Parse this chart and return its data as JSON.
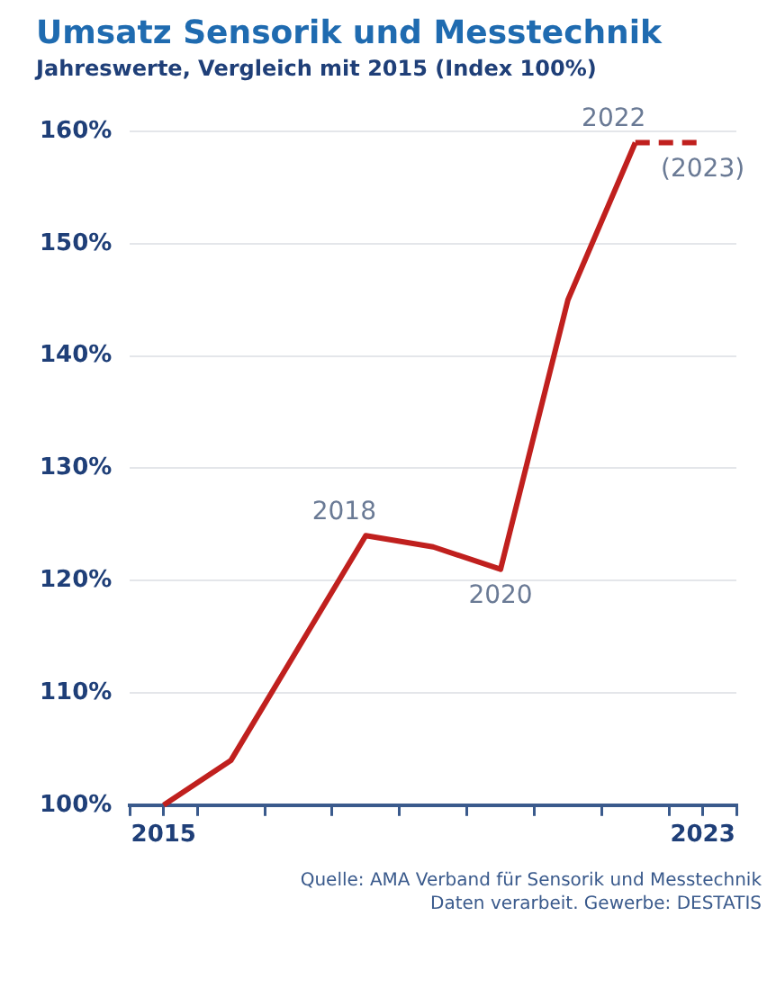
{
  "chart_data": {
    "type": "line",
    "title": "Umsatz Sensorik und Messtechnik",
    "subtitle": "Jahreswerte, Vergleich mit 2015 (Index 100%)",
    "series": [
      {
        "color": "#c0201e",
        "x": [
          2015,
          2016,
          2017,
          2018,
          2019,
          2020,
          2021,
          2022
        ],
        "values": [
          100,
          104,
          114,
          124,
          123,
          121,
          145,
          159
        ],
        "line_style": "solid"
      },
      {
        "color": "#c0201e",
        "x": [
          2022,
          2023
        ],
        "values": [
          159,
          159
        ],
        "line_style": "dashed"
      }
    ],
    "xlim": [
      2014.5,
      2023.5
    ],
    "xticks": [
      {
        "value": 2014.5,
        "label": null
      },
      {
        "value": 2015,
        "label": "2015"
      },
      {
        "value": 2015.5,
        "label": null
      },
      {
        "value": 2016.5,
        "label": null
      },
      {
        "value": 2017.5,
        "label": null
      },
      {
        "value": 2018.5,
        "label": null
      },
      {
        "value": 2019.5,
        "label": null
      },
      {
        "value": 2020.5,
        "label": null
      },
      {
        "value": 2021.5,
        "label": null
      },
      {
        "value": 2022.5,
        "label": null
      },
      {
        "value": 2023,
        "label": "2023"
      },
      {
        "value": 2023.5,
        "label": null
      }
    ],
    "ylim": [
      100,
      160
    ],
    "yticks": [
      {
        "value": 100,
        "label": "100%"
      },
      {
        "value": 110,
        "label": "110%"
      },
      {
        "value": 120,
        "label": "120%"
      },
      {
        "value": 130,
        "label": "130%"
      },
      {
        "value": 140,
        "label": "140%"
      },
      {
        "value": 150,
        "label": "150%"
      },
      {
        "value": 160,
        "label": "160%"
      }
    ],
    "grid": "y",
    "marker": "none",
    "legend": false,
    "annotations": [
      {
        "text": "2018",
        "x": 2018,
        "y": 124
      },
      {
        "text": "2020",
        "x": 2020,
        "y": 121
      },
      {
        "text": "2022",
        "x": 2022,
        "y": 159
      },
      {
        "text": "(2023)",
        "x": 2023,
        "y": 159
      },
      "Quelle: AMA Verband für Sensorik und Messtechnik",
      "Daten verarbeit. Gewerbe: DESTATIS"
    ]
  }
}
